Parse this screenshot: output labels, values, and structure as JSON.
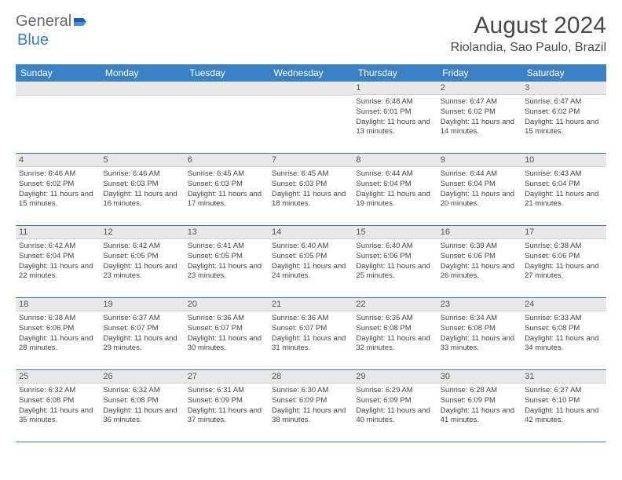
{
  "brand": {
    "general": "General",
    "blue": "Blue",
    "logo_color": "#1e5fa8"
  },
  "title": "August 2024",
  "location": "Riolandia, Sao Paulo, Brazil",
  "colors": {
    "header_bg": "#3b82c4",
    "header_text": "#ffffff",
    "daynum_bg": "#e8e8e8",
    "border": "#3b82c4",
    "text": "#444444"
  },
  "weekdays": [
    "Sunday",
    "Monday",
    "Tuesday",
    "Wednesday",
    "Thursday",
    "Friday",
    "Saturday"
  ],
  "weeks": [
    [
      null,
      null,
      null,
      null,
      {
        "n": "1",
        "sr": "6:48 AM",
        "ss": "6:01 PM",
        "dl": "11 hours and 13 minutes."
      },
      {
        "n": "2",
        "sr": "6:47 AM",
        "ss": "6:02 PM",
        "dl": "11 hours and 14 minutes."
      },
      {
        "n": "3",
        "sr": "6:47 AM",
        "ss": "6:02 PM",
        "dl": "11 hours and 15 minutes."
      }
    ],
    [
      {
        "n": "4",
        "sr": "6:46 AM",
        "ss": "6:02 PM",
        "dl": "11 hours and 15 minutes."
      },
      {
        "n": "5",
        "sr": "6:46 AM",
        "ss": "6:03 PM",
        "dl": "11 hours and 16 minutes."
      },
      {
        "n": "6",
        "sr": "6:45 AM",
        "ss": "6:03 PM",
        "dl": "11 hours and 17 minutes."
      },
      {
        "n": "7",
        "sr": "6:45 AM",
        "ss": "6:03 PM",
        "dl": "11 hours and 18 minutes."
      },
      {
        "n": "8",
        "sr": "6:44 AM",
        "ss": "6:04 PM",
        "dl": "11 hours and 19 minutes."
      },
      {
        "n": "9",
        "sr": "6:44 AM",
        "ss": "6:04 PM",
        "dl": "11 hours and 20 minutes."
      },
      {
        "n": "10",
        "sr": "6:43 AM",
        "ss": "6:04 PM",
        "dl": "11 hours and 21 minutes."
      }
    ],
    [
      {
        "n": "11",
        "sr": "6:42 AM",
        "ss": "6:04 PM",
        "dl": "11 hours and 22 minutes."
      },
      {
        "n": "12",
        "sr": "6:42 AM",
        "ss": "6:05 PM",
        "dl": "11 hours and 23 minutes."
      },
      {
        "n": "13",
        "sr": "6:41 AM",
        "ss": "6:05 PM",
        "dl": "11 hours and 23 minutes."
      },
      {
        "n": "14",
        "sr": "6:40 AM",
        "ss": "6:05 PM",
        "dl": "11 hours and 24 minutes."
      },
      {
        "n": "15",
        "sr": "6:40 AM",
        "ss": "6:06 PM",
        "dl": "11 hours and 25 minutes."
      },
      {
        "n": "16",
        "sr": "6:39 AM",
        "ss": "6:06 PM",
        "dl": "11 hours and 26 minutes."
      },
      {
        "n": "17",
        "sr": "6:38 AM",
        "ss": "6:06 PM",
        "dl": "11 hours and 27 minutes."
      }
    ],
    [
      {
        "n": "18",
        "sr": "6:38 AM",
        "ss": "6:06 PM",
        "dl": "11 hours and 28 minutes."
      },
      {
        "n": "19",
        "sr": "6:37 AM",
        "ss": "6:07 PM",
        "dl": "11 hours and 29 minutes."
      },
      {
        "n": "20",
        "sr": "6:36 AM",
        "ss": "6:07 PM",
        "dl": "11 hours and 30 minutes."
      },
      {
        "n": "21",
        "sr": "6:36 AM",
        "ss": "6:07 PM",
        "dl": "11 hours and 31 minutes."
      },
      {
        "n": "22",
        "sr": "6:35 AM",
        "ss": "6:08 PM",
        "dl": "11 hours and 32 minutes."
      },
      {
        "n": "23",
        "sr": "6:34 AM",
        "ss": "6:08 PM",
        "dl": "11 hours and 33 minutes."
      },
      {
        "n": "24",
        "sr": "6:33 AM",
        "ss": "6:08 PM",
        "dl": "11 hours and 34 minutes."
      }
    ],
    [
      {
        "n": "25",
        "sr": "6:32 AM",
        "ss": "6:08 PM",
        "dl": "11 hours and 35 minutes."
      },
      {
        "n": "26",
        "sr": "6:32 AM",
        "ss": "6:08 PM",
        "dl": "11 hours and 36 minutes."
      },
      {
        "n": "27",
        "sr": "6:31 AM",
        "ss": "6:09 PM",
        "dl": "11 hours and 37 minutes."
      },
      {
        "n": "28",
        "sr": "6:30 AM",
        "ss": "6:09 PM",
        "dl": "11 hours and 38 minutes."
      },
      {
        "n": "29",
        "sr": "6:29 AM",
        "ss": "6:09 PM",
        "dl": "11 hours and 40 minutes."
      },
      {
        "n": "30",
        "sr": "6:28 AM",
        "ss": "6:09 PM",
        "dl": "11 hours and 41 minutes."
      },
      {
        "n": "31",
        "sr": "6:27 AM",
        "ss": "6:10 PM",
        "dl": "11 hours and 42 minutes."
      }
    ]
  ],
  "labels": {
    "sunrise": "Sunrise: ",
    "sunset": "Sunset: ",
    "daylight": "Daylight: "
  }
}
